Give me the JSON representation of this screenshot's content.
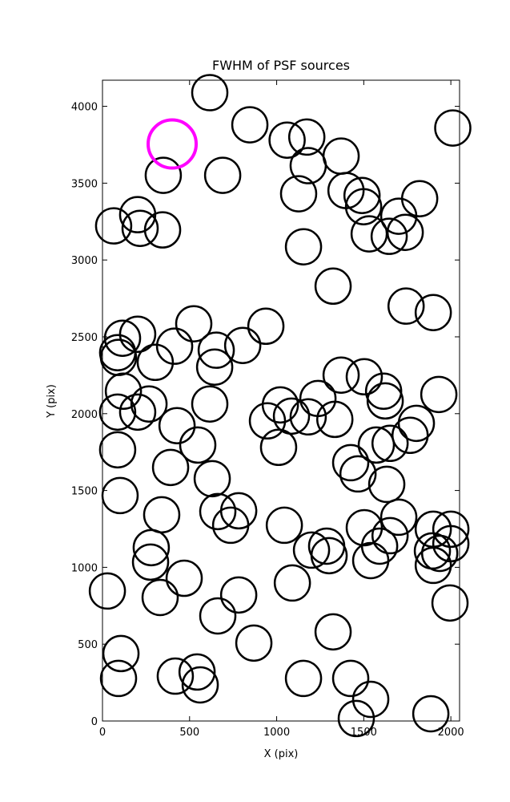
{
  "chart_data": {
    "type": "scatter",
    "title": "FWHM of PSF sources",
    "x_label": "X (pix)",
    "y_label": "Y (pix)",
    "xlim": [
      0,
      2050
    ],
    "ylim": [
      0,
      4170
    ],
    "xticks": [
      0,
      500,
      1000,
      1500,
      2000
    ],
    "yticks": [
      0,
      500,
      1000,
      1500,
      2000,
      2500,
      3000,
      3500,
      4000
    ],
    "grid": false,
    "series": [
      {
        "color": "#000000",
        "x": [
          616,
          846,
          349,
          690,
          202,
          64,
          216,
          345,
          1060,
          1173,
          1181,
          1126,
          1154,
          1370,
          1398,
          1490,
          1499,
          1531,
          1701,
          1646,
          1738,
          1821,
          2011,
          1324,
          1743,
          1899,
          115,
          202,
          87,
          92,
          303,
          414,
          524,
          653,
          644,
          805,
          938,
          120,
          267,
          87,
          202,
          616,
          428,
          547,
          87,
          391,
          630,
          101,
          662,
          782,
          736,
          340,
          280,
          276,
          469,
          331,
          782,
          662,
          869,
          28,
          106,
          92,
          418,
          561,
          543,
          1011,
          947,
          1021,
          1085,
          1181,
          1237,
          1334,
          1370,
          1503,
          1614,
          1623,
          1572,
          1651,
          1766,
          1802,
          1931,
          1425,
          1467,
          1632,
          1701,
          1503,
          1591,
          1651,
          1540,
          1044,
          1090,
          1200,
          1287,
          1301,
          1324,
          1154,
          1425,
          1540,
          1457,
          1885,
          1899,
          1894,
          1899,
          1936,
          2000,
          2000,
          1995
        ],
        "values": [
          4089,
          3880,
          3551,
          3551,
          3295,
          3222,
          3206,
          3196,
          3780,
          3800,
          3614,
          3431,
          3086,
          3676,
          3452,
          3420,
          3347,
          3170,
          3285,
          3154,
          3180,
          3399,
          3859,
          2830,
          2700,
          2658,
          2491,
          2517,
          2397,
          2366,
          2334,
          2439,
          2585,
          2413,
          2303,
          2444,
          2569,
          2146,
          2063,
          2010,
          2010,
          2063,
          1922,
          1796,
          1765,
          1650,
          1577,
          1467,
          1363,
          1368,
          1274,
          1342,
          1128,
          1034,
          929,
          804,
          820,
          684,
          507,
          846,
          439,
          277,
          292,
          235,
          319,
          1781,
          1953,
          2057,
          1984,
          1979,
          2099,
          1963,
          2251,
          2240,
          2146,
          2083,
          1796,
          1807,
          1859,
          1937,
          2125,
          1681,
          1608,
          1540,
          1326,
          1258,
          1138,
          1206,
          1044,
          1274,
          898,
          1112,
          1138,
          1076,
          580,
          277,
          277,
          141,
          16,
          47,
          1248,
          1107,
          1013,
          1091,
          1248,
          1154,
          768
        ]
      },
      {
        "color": "#ff00ff",
        "x": [
          400
        ],
        "values": [
          3755
        ]
      }
    ]
  }
}
